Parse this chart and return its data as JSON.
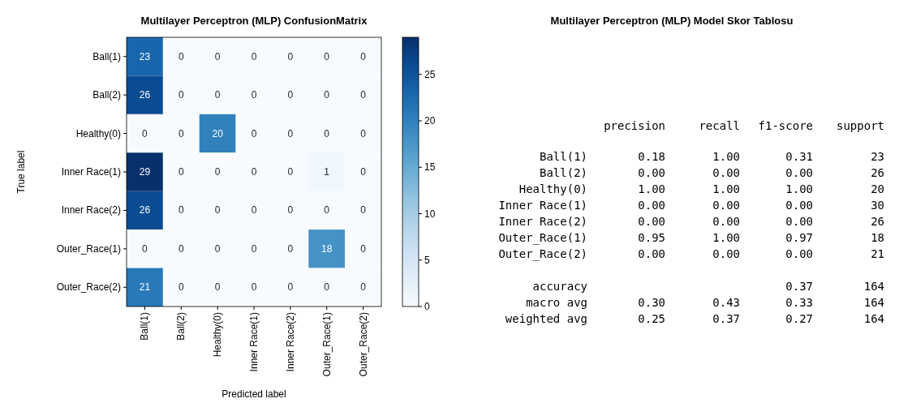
{
  "chart_data": [
    {
      "type": "heatmap",
      "title": "Multilayer Perceptron (MLP)  ConfusionMatrix",
      "xlabel": "Predicted label",
      "ylabel": "True label",
      "categories": [
        "Ball(1)",
        "Ball(2)",
        "Healthy(0)",
        "Inner Race(1)",
        "Inner Race(2)",
        "Outer_Race(1)",
        "Outer_Race(2)"
      ],
      "y_categories": [
        "Ball(1)",
        "Ball(2)",
        "Healthy(0)",
        "Inner Race(1)",
        "Inner Race(2)",
        "Outer_Race(1)",
        "Outer_Race(2)"
      ],
      "cells": [
        [
          23,
          0,
          0,
          0,
          0,
          0,
          0
        ],
        [
          26,
          0,
          0,
          0,
          0,
          0,
          0
        ],
        [
          0,
          0,
          20,
          0,
          0,
          0,
          0
        ],
        [
          29,
          0,
          0,
          0,
          0,
          1,
          0
        ],
        [
          26,
          0,
          0,
          0,
          0,
          0,
          0
        ],
        [
          0,
          0,
          0,
          0,
          0,
          18,
          0
        ],
        [
          21,
          0,
          0,
          0,
          0,
          0,
          0
        ]
      ],
      "data_labels": true,
      "clim": [
        0,
        29
      ],
      "cticks": [
        0,
        5,
        10,
        15,
        20,
        25
      ]
    },
    {
      "type": "other",
      "title": "Multilayer Perceptron (MLP) Model Skor Tablosu",
      "categories": [
        "Ball(1)",
        "Ball(2)",
        "Healthy(0)",
        "Inner Race(1)",
        "Inner Race(2)",
        "Outer_Race(1)",
        "Outer_Race(2)",
        null,
        "accuracy",
        "macro avg",
        "weighted avg"
      ],
      "series": [
        {
          "name": "precision",
          "values": [
            0.18,
            0,
            1,
            0,
            0,
            0.95,
            0,
            null,
            null,
            0.3,
            0.25
          ],
          "value_labels": [
            "0.18",
            "0.00",
            "1.00",
            "0.00",
            "0.00",
            "0.95",
            "0.00",
            null,
            null,
            "0.30",
            "0.25"
          ]
        },
        {
          "name": "recall",
          "values": [
            1,
            0,
            1,
            0,
            0,
            1,
            0,
            null,
            null,
            0.43,
            0.37
          ],
          "value_labels": [
            "1.00",
            "0.00",
            "1.00",
            "0.00",
            "0.00",
            "1.00",
            "0.00",
            null,
            null,
            "0.43",
            "0.37"
          ]
        },
        {
          "name": "f1-score",
          "values": [
            0.31,
            0,
            1,
            0,
            0,
            0.97,
            0,
            null,
            0.37,
            0.33,
            0.27
          ],
          "value_labels": [
            "0.31",
            "0.00",
            "1.00",
            "0.00",
            "0.00",
            "0.97",
            "0.00",
            null,
            "0.37",
            "0.33",
            "0.27"
          ]
        },
        {
          "name": "support",
          "values": [
            23,
            26,
            20,
            30,
            26,
            18,
            21,
            null,
            164,
            164,
            164
          ],
          "value_labels": [
            "23",
            "26",
            "20",
            "30",
            "26",
            "18",
            "21",
            null,
            "164",
            "164",
            "164"
          ]
        }
      ]
    }
  ]
}
